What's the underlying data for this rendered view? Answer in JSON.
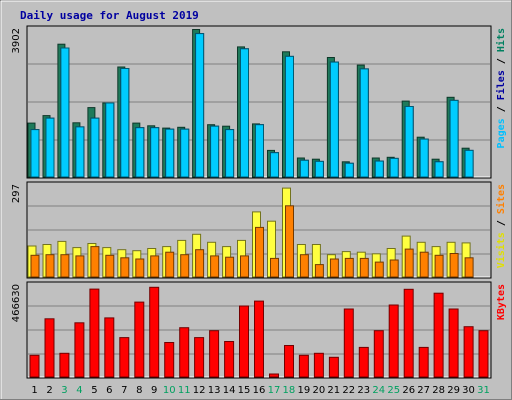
{
  "chart_data": {
    "type": "bar",
    "title": "Daily usage for August 2019",
    "categories": [
      "1",
      "2",
      "3",
      "4",
      "5",
      "6",
      "7",
      "8",
      "9",
      "10",
      "11",
      "12",
      "13",
      "14",
      "15",
      "16",
      "17",
      "18",
      "19",
      "20",
      "21",
      "22",
      "23",
      "24",
      "25",
      "26",
      "27",
      "28",
      "29",
      "30",
      "31"
    ],
    "weekend_days": [
      "3",
      "4",
      "10",
      "11",
      "17",
      "18",
      "24",
      "25",
      "31"
    ],
    "panels": [
      {
        "name": "pages-files-hits",
        "ymax_label": "3902",
        "ymax": 3902,
        "right_labels": [
          {
            "text": "Pages",
            "color": "#00c0ff"
          },
          {
            "text": " / ",
            "color": "#000000"
          },
          {
            "text": "Files",
            "color": "#0000a0"
          },
          {
            "text": " / ",
            "color": "#000000"
          },
          {
            "text": "Hits",
            "color": "#008060"
          }
        ],
        "series": [
          {
            "name": "Hits",
            "color": "#1e7a5a",
            "values": [
              1420,
              1620,
              3500,
              1430,
              1830,
              1950,
              2900,
              1420,
              1350,
              1290,
              1310,
              3890,
              1380,
              1340,
              3430,
              1400,
              700,
              3300,
              500,
              470,
              3150,
              400,
              2950,
              500,
              520,
              2000,
              1050,
              470,
              2100,
              760,
              0
            ]
          },
          {
            "name": "Files",
            "color": "#0000a0",
            "values": [
              1250,
              1550,
              3400,
              1320,
              1550,
              1950,
              2860,
              1300,
              1300,
              1260,
              1260,
              3780,
              1340,
              1250,
              3380,
              1380,
              640,
              3180,
              440,
              410,
              3030,
              360,
              2850,
              420,
              490,
              1860,
              1000,
              400,
              2020,
              700,
              0
            ]
          },
          {
            "name": "Pages",
            "color": "#00ccff",
            "values": [
              1250,
              1550,
              3400,
              1320,
              1550,
              1950,
              2860,
              1300,
              1300,
              1260,
              1260,
              3780,
              1340,
              1250,
              3380,
              1380,
              640,
              3180,
              440,
              410,
              3030,
              360,
              2850,
              420,
              490,
              1860,
              1000,
              400,
              2020,
              700,
              0
            ]
          }
        ]
      },
      {
        "name": "visits-sites",
        "ymax_label": "297",
        "ymax": 297,
        "right_labels": [
          {
            "text": "Visits",
            "color": "#e0e000"
          },
          {
            "text": " / ",
            "color": "#000000"
          },
          {
            "text": "Sites",
            "color": "#ff8000"
          }
        ],
        "series": [
          {
            "name": "Visits",
            "color": "#ffff40",
            "values": [
              100,
              105,
              115,
              95,
              108,
              95,
              88,
              85,
              92,
              98,
              118,
              138,
              112,
              98,
              118,
              210,
              180,
              287,
              105,
              105,
              72,
              82,
              80,
              75,
              92,
              132,
              112,
              98,
              112,
              110,
              0
            ]
          },
          {
            "name": "Sites",
            "color": "#ff8000",
            "values": [
              70,
              72,
              72,
              68,
              98,
              70,
              62,
              58,
              68,
              80,
              72,
              88,
              68,
              64,
              68,
              160,
              60,
              230,
              72,
              40,
              58,
              60,
              60,
              48,
              55,
              90,
              80,
              70,
              76,
              62,
              0
            ]
          }
        ]
      },
      {
        "name": "kbytes",
        "ymax_label": "466630",
        "ymax": 466630,
        "right_labels": [
          {
            "text": "KBytes",
            "color": "#ff0000"
          }
        ],
        "series": [
          {
            "name": "KBytes",
            "color": "#ff0000",
            "values": [
              110000,
              295000,
              120000,
              275000,
              446000,
              300000,
              200000,
              380000,
              455000,
              175000,
              250000,
              200000,
              235000,
              180000,
              360000,
              385000,
              15000,
              160000,
              110000,
              120000,
              100000,
              345000,
              150000,
              235000,
              365000,
              445000,
              150000,
              425000,
              345000,
              255000,
              235000
            ]
          }
        ]
      }
    ]
  }
}
